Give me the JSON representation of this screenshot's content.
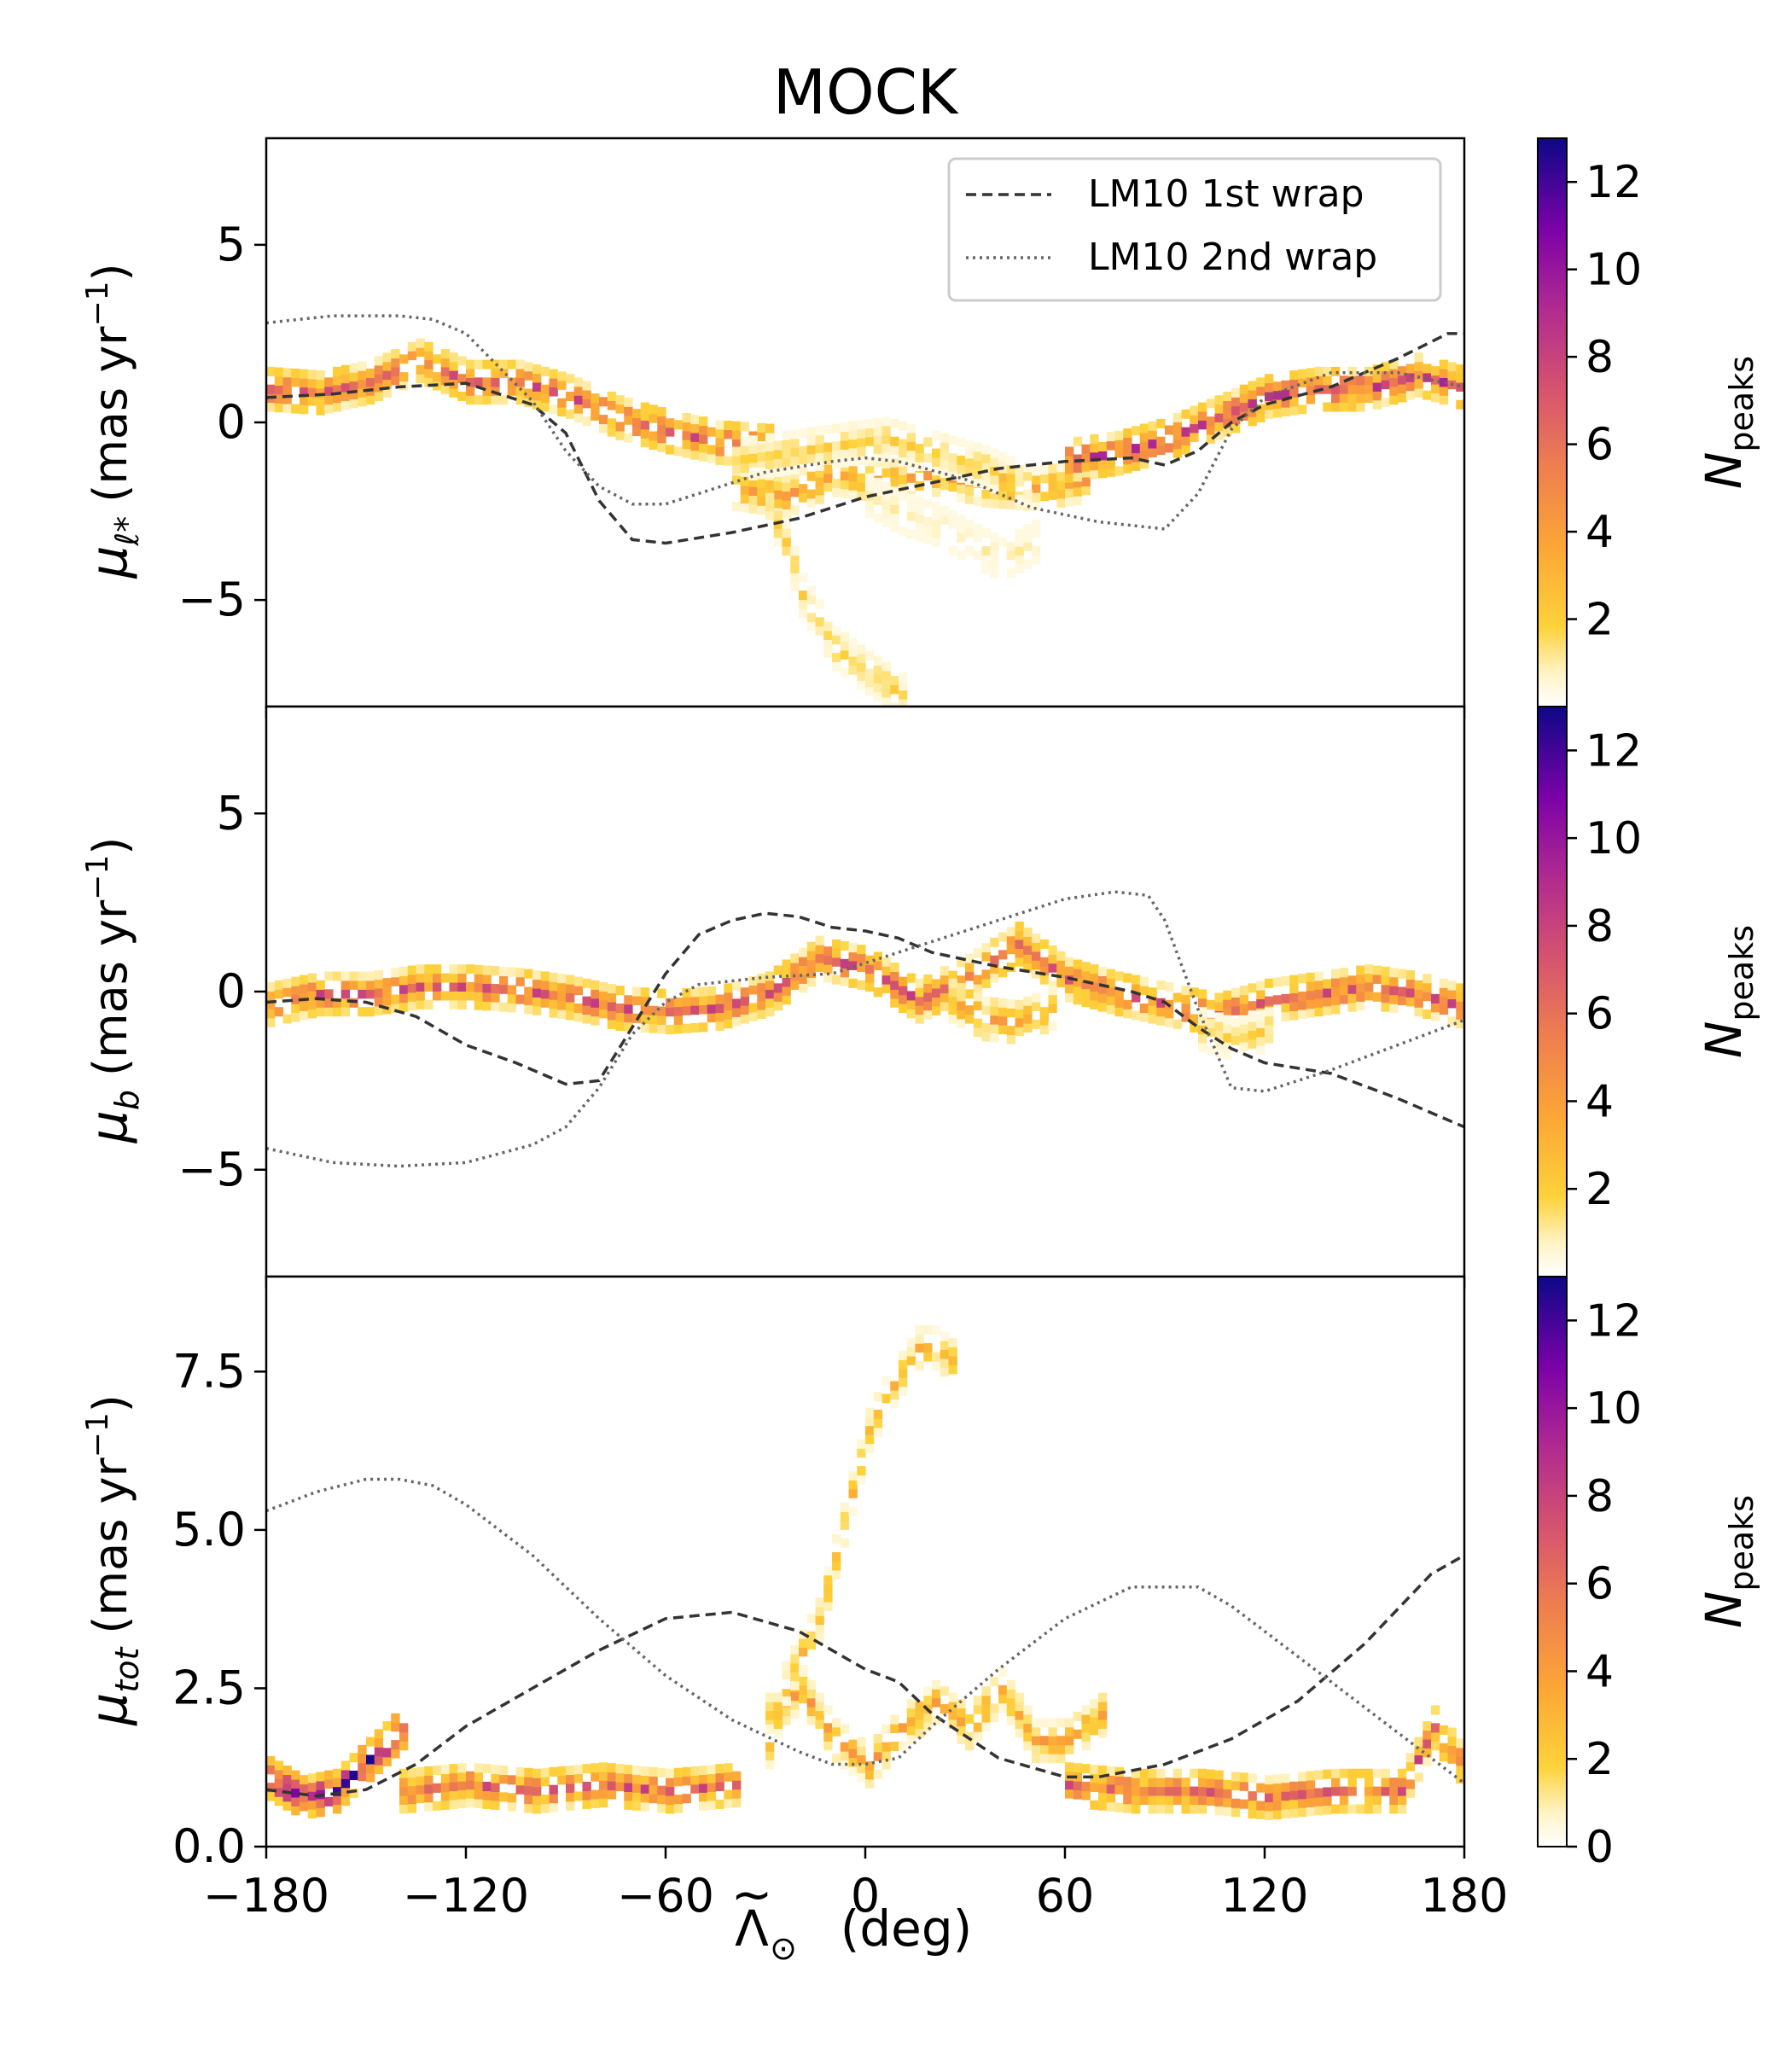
{
  "figure": {
    "title": "MOCK",
    "xlabel_base": "Λ",
    "xlabel_tilde": "~",
    "xlabel_sub": "⊙",
    "xlabel_unit": "(deg)"
  },
  "legend": {
    "placement": "upper-right of top panel",
    "entries": [
      {
        "label": "LM10 1st wrap",
        "style": "dashed",
        "color": "#333333"
      },
      {
        "label": "LM10 2nd wrap",
        "style": "dotted",
        "color": "#666666"
      }
    ]
  },
  "colorbar": {
    "label_main": "N",
    "label_sub": "peaks",
    "colormap": "plasma_r (white → yellow → orange → magenta → purple → indigo)",
    "range": [
      0,
      13
    ],
    "ticks_upper": [
      "2",
      "4",
      "6",
      "8",
      "10",
      "12"
    ],
    "ticks_bottom": [
      "0",
      "2",
      "4",
      "6",
      "8",
      "10",
      "12"
    ]
  },
  "chart_data": [
    {
      "type": "heatmap",
      "panel": "top",
      "ylabel_sym": "μ",
      "ylabel_sub": "ℓ*",
      "ylabel_unit": "(mas yr",
      "ylabel_exp": "−1",
      "ylabel_close": ")",
      "xlim": [
        -180,
        180
      ],
      "ylim": [
        -8,
        8
      ],
      "yticks": [
        -5,
        0,
        5
      ],
      "ytick_labels": [
        "−5",
        "0",
        "5"
      ],
      "grid": false,
      "density_tracks": [
        {
          "x": [
            -180,
            -165,
            -150,
            -135,
            -120,
            -105,
            -90,
            -75,
            -60,
            -45,
            -30
          ],
          "y": [
            0.8,
            0.7,
            1.0,
            1.6,
            1.0,
            1.0,
            0.6,
            0.0,
            -0.4,
            -0.7,
            -0.8
          ],
          "peak": 7
        },
        {
          "x": [
            -40,
            -25,
            -10,
            5,
            20,
            35,
            50,
            65
          ],
          "y": [
            -2.0,
            -2.2,
            -1.6,
            -1.8,
            -1.6,
            -1.9,
            -2.0,
            -1.8
          ],
          "peak": 4
        },
        {
          "x": [
            -40,
            -25,
            -10,
            5,
            20,
            35,
            50
          ],
          "y": [
            -1.2,
            -1.0,
            -0.8,
            -0.6,
            -1.0,
            -1.4,
            -2.0
          ],
          "peak": 2
        },
        {
          "x": [
            -30,
            -25,
            -20,
            -10,
            0,
            5,
            10
          ],
          "y": [
            -2.5,
            -3.5,
            -5.0,
            -6.5,
            -7.2,
            -7.5,
            -7.8
          ],
          "peak": 2
        },
        {
          "x": [
            0,
            10,
            20,
            30,
            40,
            50
          ],
          "y": [
            -2.2,
            -2.7,
            -3.0,
            -3.5,
            -4.0,
            -3.5
          ],
          "peak": 1
        },
        {
          "x": [
            60,
            75,
            90,
            105,
            120,
            135,
            150,
            165,
            180
          ],
          "y": [
            -1.2,
            -1.0,
            -0.6,
            0.0,
            0.6,
            0.8,
            0.8,
            1.2,
            0.8
          ],
          "peak": 8
        }
      ],
      "series": [
        {
          "name": "LM10 1st wrap",
          "x": [
            -180,
            -160,
            -140,
            -120,
            -100,
            -90,
            -80,
            -70,
            -60,
            -40,
            -20,
            0,
            20,
            40,
            60,
            80,
            90,
            100,
            110,
            120,
            140,
            160,
            175,
            180
          ],
          "y": [
            0.7,
            0.8,
            1.0,
            1.1,
            0.5,
            -0.3,
            -2.2,
            -3.3,
            -3.4,
            -3.1,
            -2.7,
            -2.1,
            -1.7,
            -1.3,
            -1.1,
            -1.0,
            -1.2,
            -0.8,
            0.0,
            0.5,
            1.0,
            1.8,
            2.5,
            2.5
          ]
        },
        {
          "name": "LM10 2nd wrap",
          "x": [
            -180,
            -160,
            -140,
            -130,
            -120,
            -100,
            -90,
            -80,
            -70,
            -60,
            -50,
            -30,
            -10,
            0,
            10,
            30,
            50,
            70,
            90,
            100,
            110,
            120,
            140,
            160,
            180
          ],
          "y": [
            2.8,
            3.0,
            3.0,
            2.9,
            2.5,
            0.6,
            -0.8,
            -1.8,
            -2.3,
            -2.3,
            -2.0,
            -1.4,
            -1.1,
            -1.0,
            -1.1,
            -1.6,
            -2.4,
            -2.8,
            -3.0,
            -2.0,
            -0.2,
            0.7,
            1.4,
            1.4,
            1.0
          ]
        }
      ]
    },
    {
      "type": "heatmap",
      "panel": "middle",
      "ylabel_sym": "μ",
      "ylabel_sub": "b",
      "ylabel_unit": "(mas yr",
      "ylabel_exp": "−1",
      "ylabel_close": ")",
      "xlim": [
        -180,
        180
      ],
      "ylim": [
        -8,
        8
      ],
      "yticks": [
        -5,
        0,
        5
      ],
      "ytick_labels": [
        "−5",
        "0",
        "5"
      ],
      "grid": false,
      "density_tracks": [
        {
          "x": [
            -180,
            -165,
            -150,
            -135,
            -120,
            -105,
            -90,
            -75,
            -60,
            -45,
            -30,
            -15,
            0,
            15,
            30,
            45,
            60,
            75,
            90,
            105,
            120,
            135,
            150,
            165,
            180
          ],
          "y": [
            -0.5,
            -0.2,
            -0.2,
            0.0,
            0.0,
            -0.1,
            -0.3,
            -0.6,
            -0.7,
            -0.6,
            -0.2,
            0.8,
            0.5,
            -0.4,
            0.3,
            1.2,
            0.2,
            -0.2,
            -0.5,
            -0.8,
            -0.4,
            -0.2,
            0.0,
            -0.2,
            -0.6
          ],
          "peak": 7
        },
        {
          "x": [
            25,
            35,
            45,
            55
          ],
          "y": [
            -0.4,
            -0.9,
            -1.0,
            -0.6
          ],
          "peak": 4
        },
        {
          "x": [
            100,
            110,
            120
          ],
          "y": [
            -1.2,
            -1.5,
            -1.2
          ],
          "peak": 2
        }
      ],
      "series": [
        {
          "name": "LM10 1st wrap",
          "x": [
            -180,
            -165,
            -150,
            -135,
            -120,
            -105,
            -90,
            -80,
            -70,
            -60,
            -50,
            -40,
            -30,
            -20,
            -10,
            0,
            10,
            20,
            40,
            60,
            80,
            90,
            100,
            110,
            120,
            140,
            160,
            180
          ],
          "y": [
            -0.3,
            -0.2,
            -0.3,
            -0.7,
            -1.5,
            -2.0,
            -2.6,
            -2.5,
            -1.0,
            0.5,
            1.6,
            2.0,
            2.2,
            2.1,
            1.8,
            1.7,
            1.5,
            1.1,
            0.7,
            0.4,
            0.0,
            -0.3,
            -1.0,
            -1.6,
            -2.0,
            -2.3,
            -3.0,
            -3.8
          ]
        },
        {
          "name": "LM10 2nd wrap",
          "x": [
            -180,
            -160,
            -140,
            -120,
            -100,
            -90,
            -80,
            -70,
            -60,
            -50,
            -30,
            -10,
            0,
            20,
            40,
            60,
            75,
            85,
            90,
            100,
            110,
            120,
            140,
            160,
            180
          ],
          "y": [
            -4.4,
            -4.8,
            -4.9,
            -4.8,
            -4.3,
            -3.8,
            -2.7,
            -1.2,
            -0.3,
            0.2,
            0.4,
            0.5,
            0.8,
            1.4,
            2.0,
            2.6,
            2.8,
            2.7,
            2.0,
            -0.5,
            -2.7,
            -2.8,
            -2.2,
            -1.5,
            -0.8
          ]
        }
      ]
    },
    {
      "type": "heatmap",
      "panel": "bottom",
      "ylabel_sym": "μ",
      "ylabel_sub": "tot",
      "ylabel_unit": "(mas yr",
      "ylabel_exp": "−1",
      "ylabel_close": ")",
      "xlim": [
        -180,
        180
      ],
      "ylim": [
        0,
        9
      ],
      "yticks": [
        0,
        2.5,
        5,
        7.5
      ],
      "ytick_labels": [
        "0.0",
        "2.5",
        "5.0",
        "7.5"
      ],
      "grid": false,
      "density_tracks": [
        {
          "x": [
            -180,
            -170,
            -160,
            -150,
            -140
          ],
          "y": [
            1.0,
            0.7,
            0.8,
            1.3,
            1.8
          ],
          "peak": 12
        },
        {
          "x": [
            -140,
            -120,
            -100,
            -80,
            -60,
            -40
          ],
          "y": [
            0.8,
            0.9,
            0.8,
            0.9,
            0.8,
            0.9
          ],
          "peak": 7
        },
        {
          "x": [
            -30,
            -20,
            -10,
            0,
            10,
            20,
            30,
            40,
            50,
            60,
            70
          ],
          "y": [
            2.0,
            2.4,
            1.6,
            1.2,
            1.8,
            2.2,
            1.8,
            2.4,
            1.6,
            1.6,
            2.0
          ],
          "peak": 4
        },
        {
          "x": [
            -30,
            -25,
            -15,
            -10,
            -5,
            0,
            5,
            10,
            15,
            20,
            25
          ],
          "y": [
            1.5,
            2.5,
            3.5,
            4.5,
            5.5,
            6.5,
            7.0,
            7.4,
            7.8,
            7.8,
            7.6
          ],
          "peak": 3
        },
        {
          "x": [
            60,
            80,
            100,
            120,
            140,
            160,
            170,
            180
          ],
          "y": [
            0.9,
            0.8,
            0.8,
            0.7,
            0.8,
            0.8,
            1.8,
            1.1
          ],
          "peak": 7
        }
      ],
      "series": [
        {
          "name": "LM10 1st wrap",
          "x": [
            -180,
            -165,
            -150,
            -135,
            -120,
            -100,
            -80,
            -60,
            -40,
            -20,
            0,
            10,
            20,
            40,
            60,
            70,
            90,
            110,
            130,
            150,
            170,
            180
          ],
          "y": [
            0.9,
            0.8,
            0.9,
            1.3,
            1.9,
            2.5,
            3.1,
            3.6,
            3.7,
            3.4,
            2.8,
            2.6,
            2.1,
            1.4,
            1.1,
            1.1,
            1.3,
            1.7,
            2.3,
            3.2,
            4.3,
            4.6
          ]
        },
        {
          "name": "LM10 2nd wrap",
          "x": [
            -180,
            -165,
            -150,
            -140,
            -130,
            -120,
            -100,
            -80,
            -60,
            -40,
            -20,
            -10,
            0,
            10,
            20,
            40,
            60,
            80,
            100,
            110,
            120,
            140,
            160,
            180
          ],
          "y": [
            5.3,
            5.6,
            5.8,
            5.8,
            5.7,
            5.4,
            4.6,
            3.6,
            2.7,
            2.0,
            1.5,
            1.3,
            1.3,
            1.4,
            1.9,
            2.8,
            3.6,
            4.1,
            4.1,
            3.8,
            3.4,
            2.6,
            1.8,
            1.0
          ]
        }
      ]
    }
  ],
  "xaxis": {
    "ticks": [
      -180,
      -120,
      -60,
      0,
      60,
      120,
      180
    ],
    "tick_labels": [
      "−180",
      "−120",
      "−60",
      "0",
      "60",
      "120",
      "180"
    ]
  }
}
